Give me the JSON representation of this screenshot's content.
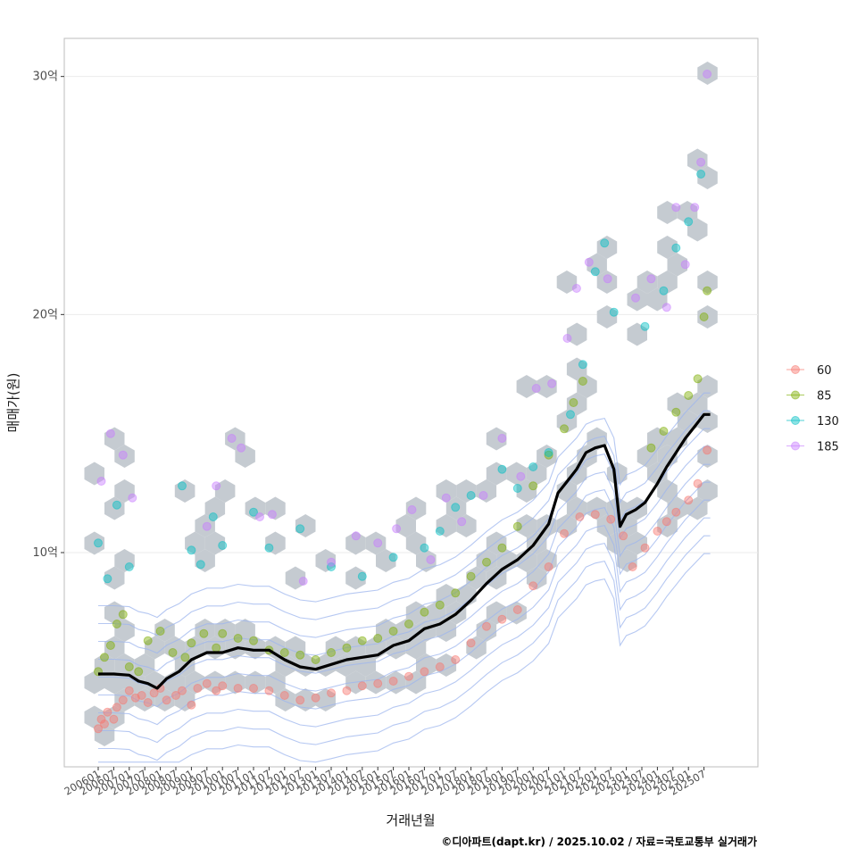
{
  "chart_data": {
    "type": "scatter",
    "xlabel": "거래년월",
    "ylabel": "매매가(원)",
    "caption": "©디아파트(dapt.kr) / 2025.10.02 / 자료=국토교통부 실거래가",
    "x_ticks": [
      "200601",
      "200607",
      "200701",
      "200707",
      "200801",
      "200807",
      "200901",
      "200907",
      "201001",
      "201007",
      "201101",
      "201107",
      "201201",
      "201207",
      "201301",
      "201307",
      "201401",
      "201407",
      "201501",
      "201507",
      "201601",
      "201607",
      "201701",
      "201707",
      "201801",
      "201807",
      "201901",
      "201907",
      "202001",
      "202007",
      "202101",
      "202107",
      "202201",
      "202207",
      "202301",
      "202307",
      "202401",
      "202407",
      "202501",
      "202507"
    ],
    "y_ticks": [
      {
        "value": 10,
        "label": "10억"
      },
      {
        "value": 20,
        "label": "20억"
      },
      {
        "value": 30,
        "label": "30억"
      }
    ],
    "ylim": [
      1,
      31.6
    ],
    "grid": true,
    "legend": {
      "position": "right",
      "items": [
        {
          "label": "60",
          "color": "#F8766D"
        },
        {
          "label": "85",
          "color": "#7CAE00"
        },
        {
          "label": "130",
          "color": "#00BFC4"
        },
        {
          "label": "185",
          "color": "#C77CFF"
        }
      ]
    },
    "trend_line": {
      "name": "median",
      "color": "#000000",
      "points": [
        [
          2006.0,
          4.9
        ],
        [
          2006.5,
          4.9
        ],
        [
          2007.0,
          4.85
        ],
        [
          2007.3,
          4.6
        ],
        [
          2007.6,
          4.5
        ],
        [
          2007.9,
          4.3
        ],
        [
          2008.2,
          4.7
        ],
        [
          2008.6,
          5.0
        ],
        [
          2009.0,
          5.5
        ],
        [
          2009.5,
          5.8
        ],
        [
          2010.0,
          5.8
        ],
        [
          2010.5,
          6.0
        ],
        [
          2011.0,
          5.9
        ],
        [
          2011.5,
          5.9
        ],
        [
          2012.0,
          5.5
        ],
        [
          2012.5,
          5.2
        ],
        [
          2013.0,
          5.1
        ],
        [
          2013.5,
          5.3
        ],
        [
          2014.0,
          5.5
        ],
        [
          2014.5,
          5.6
        ],
        [
          2015.0,
          5.7
        ],
        [
          2015.5,
          6.1
        ],
        [
          2016.0,
          6.3
        ],
        [
          2016.5,
          6.8
        ],
        [
          2017.0,
          7.0
        ],
        [
          2017.5,
          7.4
        ],
        [
          2018.0,
          8.0
        ],
        [
          2018.5,
          8.7
        ],
        [
          2019.0,
          9.3
        ],
        [
          2019.5,
          9.7
        ],
        [
          2020.0,
          10.3
        ],
        [
          2020.5,
          11.2
        ],
        [
          2020.8,
          12.5
        ],
        [
          2021.1,
          13.0
        ],
        [
          2021.4,
          13.5
        ],
        [
          2021.7,
          14.2
        ],
        [
          2022.0,
          14.4
        ],
        [
          2022.3,
          14.5
        ],
        [
          2022.6,
          13.5
        ],
        [
          2022.8,
          11.1
        ],
        [
          2023.0,
          11.6
        ],
        [
          2023.3,
          11.8
        ],
        [
          2023.6,
          12.1
        ],
        [
          2024.0,
          12.9
        ],
        [
          2024.3,
          13.6
        ],
        [
          2024.6,
          14.2
        ],
        [
          2024.9,
          14.8
        ],
        [
          2025.2,
          15.3
        ],
        [
          2025.5,
          15.8
        ],
        [
          2025.7,
          15.8
        ]
      ]
    },
    "series": [
      {
        "name": "60",
        "color": "#F8766D",
        "points": [
          [
            2006.0,
            2.6
          ],
          [
            2006.1,
            3.0
          ],
          [
            2006.2,
            2.8
          ],
          [
            2006.3,
            3.3
          ],
          [
            2006.5,
            3.0
          ],
          [
            2006.6,
            3.5
          ],
          [
            2006.8,
            3.8
          ],
          [
            2007.0,
            4.2
          ],
          [
            2007.2,
            3.9
          ],
          [
            2007.4,
            4.0
          ],
          [
            2007.6,
            3.7
          ],
          [
            2007.8,
            4.1
          ],
          [
            2008.0,
            4.3
          ],
          [
            2008.2,
            3.8
          ],
          [
            2008.5,
            4.0
          ],
          [
            2008.7,
            4.2
          ],
          [
            2009.0,
            3.6
          ],
          [
            2009.2,
            4.3
          ],
          [
            2009.5,
            4.5
          ],
          [
            2009.8,
            4.2
          ],
          [
            2010.0,
            4.4
          ],
          [
            2010.5,
            4.3
          ],
          [
            2011.0,
            4.3
          ],
          [
            2011.5,
            4.2
          ],
          [
            2012.0,
            4.0
          ],
          [
            2012.5,
            3.8
          ],
          [
            2013.0,
            3.9
          ],
          [
            2013.5,
            4.1
          ],
          [
            2014.0,
            4.2
          ],
          [
            2014.5,
            4.4
          ],
          [
            2015.0,
            4.5
          ],
          [
            2015.5,
            4.6
          ],
          [
            2016.0,
            4.8
          ],
          [
            2016.5,
            5.0
          ],
          [
            2017.0,
            5.2
          ],
          [
            2017.5,
            5.5
          ],
          [
            2018.0,
            6.2
          ],
          [
            2018.5,
            6.9
          ],
          [
            2019.0,
            7.2
          ],
          [
            2019.5,
            7.6
          ],
          [
            2020.0,
            8.6
          ],
          [
            2020.5,
            9.4
          ],
          [
            2021.0,
            10.8
          ],
          [
            2021.5,
            11.5
          ],
          [
            2022.0,
            11.6
          ],
          [
            2022.5,
            11.4
          ],
          [
            2022.9,
            10.7
          ],
          [
            2023.2,
            9.4
          ],
          [
            2023.6,
            10.2
          ],
          [
            2024.0,
            10.9
          ],
          [
            2024.3,
            11.3
          ],
          [
            2024.6,
            11.7
          ],
          [
            2025.0,
            12.2
          ],
          [
            2025.3,
            12.9
          ],
          [
            2025.6,
            14.3
          ]
        ]
      },
      {
        "name": "85",
        "color": "#7CAE00",
        "points": [
          [
            2006.0,
            5.0
          ],
          [
            2006.2,
            5.6
          ],
          [
            2006.4,
            6.1
          ],
          [
            2006.6,
            7.0
          ],
          [
            2006.8,
            7.4
          ],
          [
            2007.0,
            5.2
          ],
          [
            2007.3,
            5.0
          ],
          [
            2007.6,
            6.3
          ],
          [
            2008.0,
            6.7
          ],
          [
            2008.4,
            5.8
          ],
          [
            2008.8,
            5.6
          ],
          [
            2009.0,
            6.2
          ],
          [
            2009.4,
            6.6
          ],
          [
            2009.8,
            6.0
          ],
          [
            2010.0,
            6.6
          ],
          [
            2010.5,
            6.4
          ],
          [
            2011.0,
            6.3
          ],
          [
            2011.5,
            5.9
          ],
          [
            2012.0,
            5.8
          ],
          [
            2012.5,
            5.7
          ],
          [
            2013.0,
            5.5
          ],
          [
            2013.5,
            5.8
          ],
          [
            2014.0,
            6.0
          ],
          [
            2014.5,
            6.3
          ],
          [
            2015.0,
            6.4
          ],
          [
            2015.5,
            6.7
          ],
          [
            2016.0,
            7.0
          ],
          [
            2016.5,
            7.5
          ],
          [
            2017.0,
            7.8
          ],
          [
            2017.5,
            8.3
          ],
          [
            2018.0,
            9.0
          ],
          [
            2018.5,
            9.6
          ],
          [
            2019.0,
            10.2
          ],
          [
            2019.5,
            11.1
          ],
          [
            2020.0,
            12.8
          ],
          [
            2020.5,
            14.1
          ],
          [
            2021.0,
            15.2
          ],
          [
            2021.3,
            16.3
          ],
          [
            2021.6,
            17.2
          ],
          [
            2023.8,
            14.4
          ],
          [
            2024.2,
            15.1
          ],
          [
            2024.6,
            15.9
          ],
          [
            2025.0,
            16.6
          ],
          [
            2025.3,
            17.3
          ],
          [
            2025.5,
            19.9
          ],
          [
            2025.6,
            21.0
          ]
        ]
      },
      {
        "name": "130",
        "color": "#00BFC4",
        "points": [
          [
            2006.0,
            10.4
          ],
          [
            2006.3,
            8.9
          ],
          [
            2006.6,
            12.0
          ],
          [
            2007.0,
            9.4
          ],
          [
            2008.7,
            12.8
          ],
          [
            2009.0,
            10.1
          ],
          [
            2009.3,
            9.5
          ],
          [
            2009.7,
            11.5
          ],
          [
            2010.0,
            10.3
          ],
          [
            2011.0,
            11.7
          ],
          [
            2011.5,
            10.2
          ],
          [
            2012.5,
            11.0
          ],
          [
            2013.5,
            9.4
          ],
          [
            2014.5,
            9.0
          ],
          [
            2015.5,
            9.8
          ],
          [
            2016.5,
            10.2
          ],
          [
            2017.0,
            10.9
          ],
          [
            2017.5,
            11.9
          ],
          [
            2018.0,
            12.4
          ],
          [
            2019.0,
            13.5
          ],
          [
            2019.5,
            12.7
          ],
          [
            2020.0,
            13.6
          ],
          [
            2020.5,
            14.2
          ],
          [
            2021.2,
            15.8
          ],
          [
            2021.6,
            17.9
          ],
          [
            2022.0,
            21.8
          ],
          [
            2022.3,
            23.0
          ],
          [
            2022.6,
            20.1
          ],
          [
            2023.6,
            19.5
          ],
          [
            2024.2,
            21.0
          ],
          [
            2024.6,
            22.8
          ],
          [
            2025.0,
            23.9
          ],
          [
            2025.4,
            25.9
          ]
        ]
      },
      {
        "name": "185",
        "color": "#C77CFF",
        "points": [
          [
            2006.1,
            13.0
          ],
          [
            2006.4,
            15.0
          ],
          [
            2006.8,
            14.1
          ],
          [
            2007.1,
            12.3
          ],
          [
            2009.5,
            11.1
          ],
          [
            2009.8,
            12.8
          ],
          [
            2010.3,
            14.8
          ],
          [
            2010.6,
            14.4
          ],
          [
            2011.2,
            11.5
          ],
          [
            2011.6,
            11.6
          ],
          [
            2012.6,
            8.8
          ],
          [
            2013.5,
            9.6
          ],
          [
            2014.3,
            10.7
          ],
          [
            2015.0,
            10.4
          ],
          [
            2015.6,
            11.0
          ],
          [
            2016.1,
            11.8
          ],
          [
            2016.7,
            9.7
          ],
          [
            2017.2,
            12.3
          ],
          [
            2017.7,
            11.3
          ],
          [
            2018.4,
            12.4
          ],
          [
            2019.0,
            14.8
          ],
          [
            2019.6,
            13.2
          ],
          [
            2020.1,
            16.9
          ],
          [
            2020.6,
            17.1
          ],
          [
            2021.1,
            19.0
          ],
          [
            2021.4,
            21.1
          ],
          [
            2021.8,
            22.2
          ],
          [
            2022.4,
            21.5
          ],
          [
            2023.3,
            20.7
          ],
          [
            2023.8,
            21.5
          ],
          [
            2024.3,
            20.3
          ],
          [
            2024.6,
            24.5
          ],
          [
            2024.9,
            22.1
          ],
          [
            2025.2,
            24.5
          ],
          [
            2025.4,
            26.4
          ],
          [
            2025.6,
            30.1
          ]
        ]
      }
    ]
  }
}
